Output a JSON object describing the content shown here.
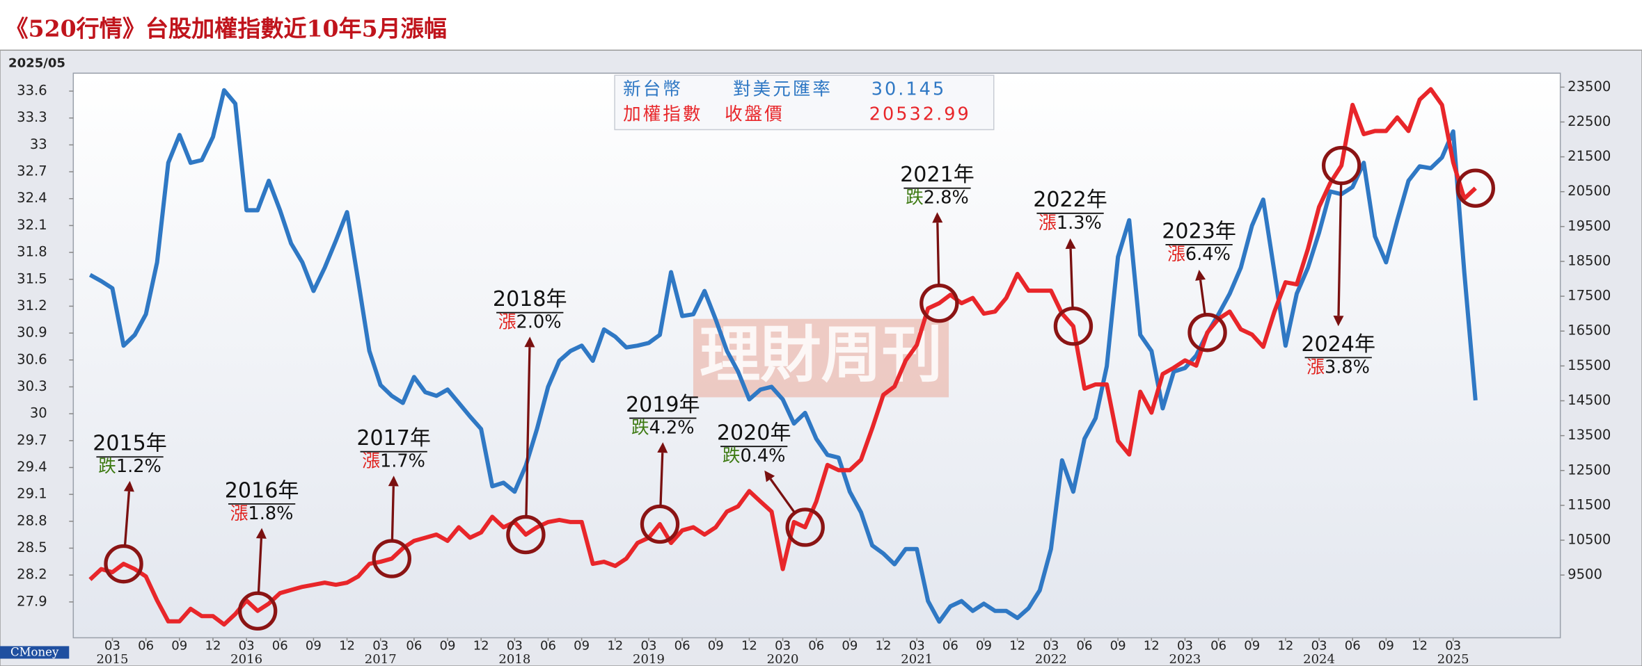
{
  "chart_data": {
    "type": "line",
    "title": "《520行情》台股加權指數近10年5月漲幅",
    "date_label": "2025/05",
    "source": "CMoney",
    "watermark": "理財周刊",
    "x": [
      "2015-01",
      "2015-02",
      "2015-03",
      "2015-04",
      "2015-05",
      "2015-06",
      "2015-07",
      "2015-08",
      "2015-09",
      "2015-10",
      "2015-11",
      "2015-12",
      "2016-01",
      "2016-02",
      "2016-03",
      "2016-04",
      "2016-05",
      "2016-06",
      "2016-07",
      "2016-08",
      "2016-09",
      "2016-10",
      "2016-11",
      "2016-12",
      "2017-01",
      "2017-02",
      "2017-03",
      "2017-04",
      "2017-05",
      "2017-06",
      "2017-07",
      "2017-08",
      "2017-09",
      "2017-10",
      "2017-11",
      "2017-12",
      "2018-01",
      "2018-02",
      "2018-03",
      "2018-04",
      "2018-05",
      "2018-06",
      "2018-07",
      "2018-08",
      "2018-09",
      "2018-10",
      "2018-11",
      "2018-12",
      "2019-01",
      "2019-02",
      "2019-03",
      "2019-04",
      "2019-05",
      "2019-06",
      "2019-07",
      "2019-08",
      "2019-09",
      "2019-10",
      "2019-11",
      "2019-12",
      "2020-01",
      "2020-02",
      "2020-03",
      "2020-04",
      "2020-05",
      "2020-06",
      "2020-07",
      "2020-08",
      "2020-09",
      "2020-10",
      "2020-11",
      "2020-12",
      "2021-01",
      "2021-02",
      "2021-03",
      "2021-04",
      "2021-05",
      "2021-06",
      "2021-07",
      "2021-08",
      "2021-09",
      "2021-10",
      "2021-11",
      "2021-12",
      "2022-01",
      "2022-02",
      "2022-03",
      "2022-04",
      "2022-05",
      "2022-06",
      "2022-07",
      "2022-08",
      "2022-09",
      "2022-10",
      "2022-11",
      "2022-12",
      "2023-01",
      "2023-02",
      "2023-03",
      "2023-04",
      "2023-05",
      "2023-06",
      "2023-07",
      "2023-08",
      "2023-09",
      "2023-10",
      "2023-11",
      "2023-12",
      "2024-01",
      "2024-02",
      "2024-03",
      "2024-04",
      "2024-05",
      "2024-06",
      "2024-07",
      "2024-08",
      "2024-09",
      "2024-10",
      "2024-11",
      "2024-12",
      "2025-01",
      "2025-02",
      "2025-03",
      "2025-04",
      "2025-05"
    ],
    "series": [
      {
        "name": "新台幣",
        "color": "#2f78c4",
        "axis": "y",
        "values": [
          31.55,
          31.48,
          31.4,
          30.76,
          30.88,
          31.11,
          31.69,
          32.8,
          33.11,
          32.8,
          32.83,
          33.09,
          33.61,
          33.46,
          32.27,
          32.27,
          32.6,
          32.27,
          31.9,
          31.69,
          31.37,
          31.63,
          31.93,
          32.25,
          31.48,
          30.7,
          30.32,
          30.2,
          30.12,
          30.41,
          30.24,
          30.2,
          30.27,
          30.12,
          29.97,
          29.83,
          29.19,
          29.23,
          29.13,
          29.42,
          29.83,
          30.3,
          30.59,
          30.7,
          30.76,
          30.59,
          30.94,
          30.86,
          30.74,
          30.76,
          30.79,
          30.88,
          31.58,
          31.09,
          31.11,
          31.37,
          31.05,
          30.7,
          30.47,
          30.16,
          30.27,
          30.3,
          30.16,
          29.89,
          30.01,
          29.72,
          29.54,
          29.51,
          29.13,
          28.9,
          28.53,
          28.44,
          28.32,
          28.49,
          28.49,
          27.91,
          27.68,
          27.85,
          27.91,
          27.8,
          27.88,
          27.8,
          27.8,
          27.72,
          27.83,
          28.03,
          28.49,
          29.48,
          29.13,
          29.72,
          29.95,
          30.53,
          31.75,
          32.16,
          30.88,
          30.7,
          30.06,
          30.47,
          30.51,
          30.65,
          30.9,
          31.11,
          31.34,
          31.63,
          32.1,
          32.39,
          31.58,
          30.76,
          31.34,
          31.63,
          32.02,
          32.48,
          32.45,
          32.53,
          32.8,
          31.98,
          31.69,
          32.16,
          32.6,
          32.76,
          32.74,
          32.86,
          33.15,
          31.58,
          30.15
        ]
      },
      {
        "name": "加權指數",
        "color": "#e8262a",
        "axis": "y2",
        "values": [
          9370,
          9670,
          9580,
          9820,
          9670,
          9460,
          8770,
          8170,
          8170,
          8530,
          8320,
          8320,
          8080,
          8380,
          8770,
          8470,
          8680,
          8980,
          9070,
          9160,
          9220,
          9280,
          9220,
          9280,
          9460,
          9820,
          9880,
          9970,
          10270,
          10480,
          10570,
          10660,
          10480,
          10870,
          10570,
          10720,
          11170,
          10870,
          11020,
          10660,
          10870,
          11020,
          11080,
          11020,
          11020,
          9820,
          9880,
          9760,
          9970,
          10420,
          10570,
          10960,
          10420,
          10780,
          10870,
          10660,
          10870,
          11320,
          11470,
          11910,
          11610,
          11320,
          9670,
          11020,
          10870,
          11610,
          12660,
          12510,
          12510,
          12810,
          13710,
          14670,
          14910,
          15660,
          16100,
          17150,
          17300,
          17540,
          17300,
          17450,
          17000,
          17060,
          17450,
          18140,
          17660,
          17660,
          17660,
          17000,
          16640,
          14850,
          14970,
          14970,
          13350,
          12960,
          14760,
          14160,
          15270,
          15450,
          15660,
          15510,
          16460,
          16850,
          17060,
          16550,
          16400,
          16050,
          17060,
          17900,
          17840,
          18860,
          20060,
          20750,
          21250,
          22990,
          22150,
          22240,
          22240,
          22630,
          22240,
          23140,
          23440,
          22990,
          21340,
          20300,
          20600
        ]
      }
    ],
    "info_box": [
      {
        "label": "對美元匯率",
        "value": 30.145
      },
      {
        "label": "收盤價",
        "value": 20532.99
      }
    ],
    "ylim": [
      27.5,
      33.8
    ],
    "yticks": [
      27.9,
      28.2,
      28.5,
      28.8,
      29.1,
      29.4,
      29.7,
      30,
      30.3,
      30.6,
      30.9,
      31.2,
      31.5,
      31.8,
      32.1,
      32.4,
      32.7,
      33,
      33.3,
      33.6
    ],
    "y2lim": [
      7700,
      23900
    ],
    "y2ticks": [
      9500,
      10500,
      11500,
      12500,
      13500,
      14500,
      15500,
      16500,
      17500,
      18500,
      19500,
      20500,
      21500,
      22500,
      23500
    ],
    "xticks": [
      {
        "value": "2015-03",
        "label": "03"
      },
      {
        "value": "2015-06",
        "label": "06"
      },
      {
        "value": "2015-09",
        "label": "09"
      },
      {
        "value": "2015-12",
        "label": "12"
      },
      {
        "value": "2016-03",
        "label": "03"
      },
      {
        "value": "2016-06",
        "label": "06"
      },
      {
        "value": "2016-09",
        "label": "09"
      },
      {
        "value": "2016-12",
        "label": "12"
      },
      {
        "value": "2017-03",
        "label": "03"
      },
      {
        "value": "2017-06",
        "label": "06"
      },
      {
        "value": "2017-09",
        "label": "09"
      },
      {
        "value": "2017-12",
        "label": "12"
      },
      {
        "value": "2018-03",
        "label": "03"
      },
      {
        "value": "2018-06",
        "label": "06"
      },
      {
        "value": "2018-09",
        "label": "09"
      },
      {
        "value": "2018-12",
        "label": "12"
      },
      {
        "value": "2019-03",
        "label": "03"
      },
      {
        "value": "2019-06",
        "label": "06"
      },
      {
        "value": "2019-09",
        "label": "09"
      },
      {
        "value": "2019-12",
        "label": "12"
      },
      {
        "value": "2020-03",
        "label": "03"
      },
      {
        "value": "2020-06",
        "label": "06"
      },
      {
        "value": "2020-09",
        "label": "09"
      },
      {
        "value": "2020-12",
        "label": "12"
      },
      {
        "value": "2021-03",
        "label": "03"
      },
      {
        "value": "2021-06",
        "label": "06"
      },
      {
        "value": "2021-09",
        "label": "09"
      },
      {
        "value": "2021-12",
        "label": "12"
      },
      {
        "value": "2022-03",
        "label": "03"
      },
      {
        "value": "2022-06",
        "label": "06"
      },
      {
        "value": "2022-09",
        "label": "09"
      },
      {
        "value": "2022-12",
        "label": "12"
      },
      {
        "value": "2023-03",
        "label": "03"
      },
      {
        "value": "2023-06",
        "label": "06"
      },
      {
        "value": "2023-09",
        "label": "09"
      },
      {
        "value": "2023-12",
        "label": "12"
      },
      {
        "value": "2024-03",
        "label": "03"
      },
      {
        "value": "2024-06",
        "label": "06"
      },
      {
        "value": "2024-09",
        "label": "09"
      },
      {
        "value": "2024-12",
        "label": "12"
      },
      {
        "value": "2025-03",
        "label": "03"
      }
    ],
    "x_year_labels": [
      {
        "value": "2015-03",
        "label": "2015"
      },
      {
        "value": "2016-03",
        "label": "2016"
      },
      {
        "value": "2017-03",
        "label": "2017"
      },
      {
        "value": "2018-03",
        "label": "2018"
      },
      {
        "value": "2019-03",
        "label": "2019"
      },
      {
        "value": "2020-03",
        "label": "2020"
      },
      {
        "value": "2021-03",
        "label": "2021"
      },
      {
        "value": "2022-03",
        "label": "2022"
      },
      {
        "value": "2023-03",
        "label": "2023"
      },
      {
        "value": "2024-03",
        "label": "2024"
      },
      {
        "value": "2025-03",
        "label": "2025"
      }
    ],
    "grid": false,
    "annotations": [
      {
        "x": "2015-04",
        "year": "2015年",
        "direction": "跌",
        "direction_color": "#3d7a12",
        "change": "1.2%"
      },
      {
        "x": "2016-04",
        "year": "2016年",
        "direction": "漲",
        "direction_color": "#e0201c",
        "change": "1.8%"
      },
      {
        "x": "2017-04",
        "year": "2017年",
        "direction": "漲",
        "direction_color": "#e0201c",
        "change": "1.7%"
      },
      {
        "x": "2018-04",
        "year": "2018年",
        "direction": "漲",
        "direction_color": "#e0201c",
        "change": "2.0%"
      },
      {
        "x": "2019-04",
        "year": "2019年",
        "direction": "跌",
        "direction_color": "#3d7a12",
        "change": "4.2%"
      },
      {
        "x": "2020-05",
        "year": "2020年",
        "direction": "跌",
        "direction_color": "#3d7a12",
        "change": "0.4%"
      },
      {
        "x": "2021-05",
        "year": "2021年",
        "direction": "跌",
        "direction_color": "#3d7a12",
        "change": "2.8%"
      },
      {
        "x": "2022-05",
        "year": "2022年",
        "direction": "漲",
        "direction_color": "#e0201c",
        "change": "1.3%"
      },
      {
        "x": "2023-05",
        "year": "2023年",
        "direction": "漲",
        "direction_color": "#e0201c",
        "change": "6.4%"
      },
      {
        "x": "2024-05",
        "year": "2024年",
        "direction": "漲",
        "direction_color": "#e0201c",
        "change": "3.8%"
      },
      {
        "x": "2025-05"
      }
    ]
  }
}
